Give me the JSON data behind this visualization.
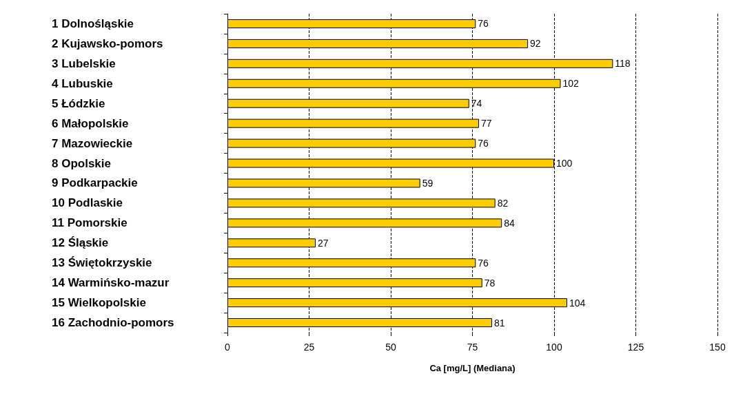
{
  "chart_data": {
    "type": "bar",
    "orientation": "horizontal",
    "xlabel": "Ca [mg/L] (Mediana)",
    "categories": [
      "1 Dolnośląskie",
      "2 Kujawsko-pomors",
      "3 Lubelskie",
      "4 Lubuskie",
      "5 Łódzkie",
      "6 Małopolskie",
      "7 Mazowieckie",
      "8 Opolskie",
      "9 Podkarpackie",
      "10 Podlaskie",
      "11 Pomorskie",
      "12 Śląskie",
      "13 Świętokrzyskie",
      "14 Warmińsko-mazur",
      "15 Wielkopolskie",
      "16 Zachodnio-pomors"
    ],
    "values": [
      76,
      92,
      118,
      102,
      74,
      77,
      76,
      100,
      59,
      82,
      84,
      27,
      76,
      78,
      104,
      81
    ],
    "color": "#ffcc00",
    "data_labels": true,
    "grid": "x",
    "xlim": [
      0,
      150
    ],
    "xticks": [
      0,
      25,
      50,
      75,
      100,
      125,
      150
    ]
  }
}
